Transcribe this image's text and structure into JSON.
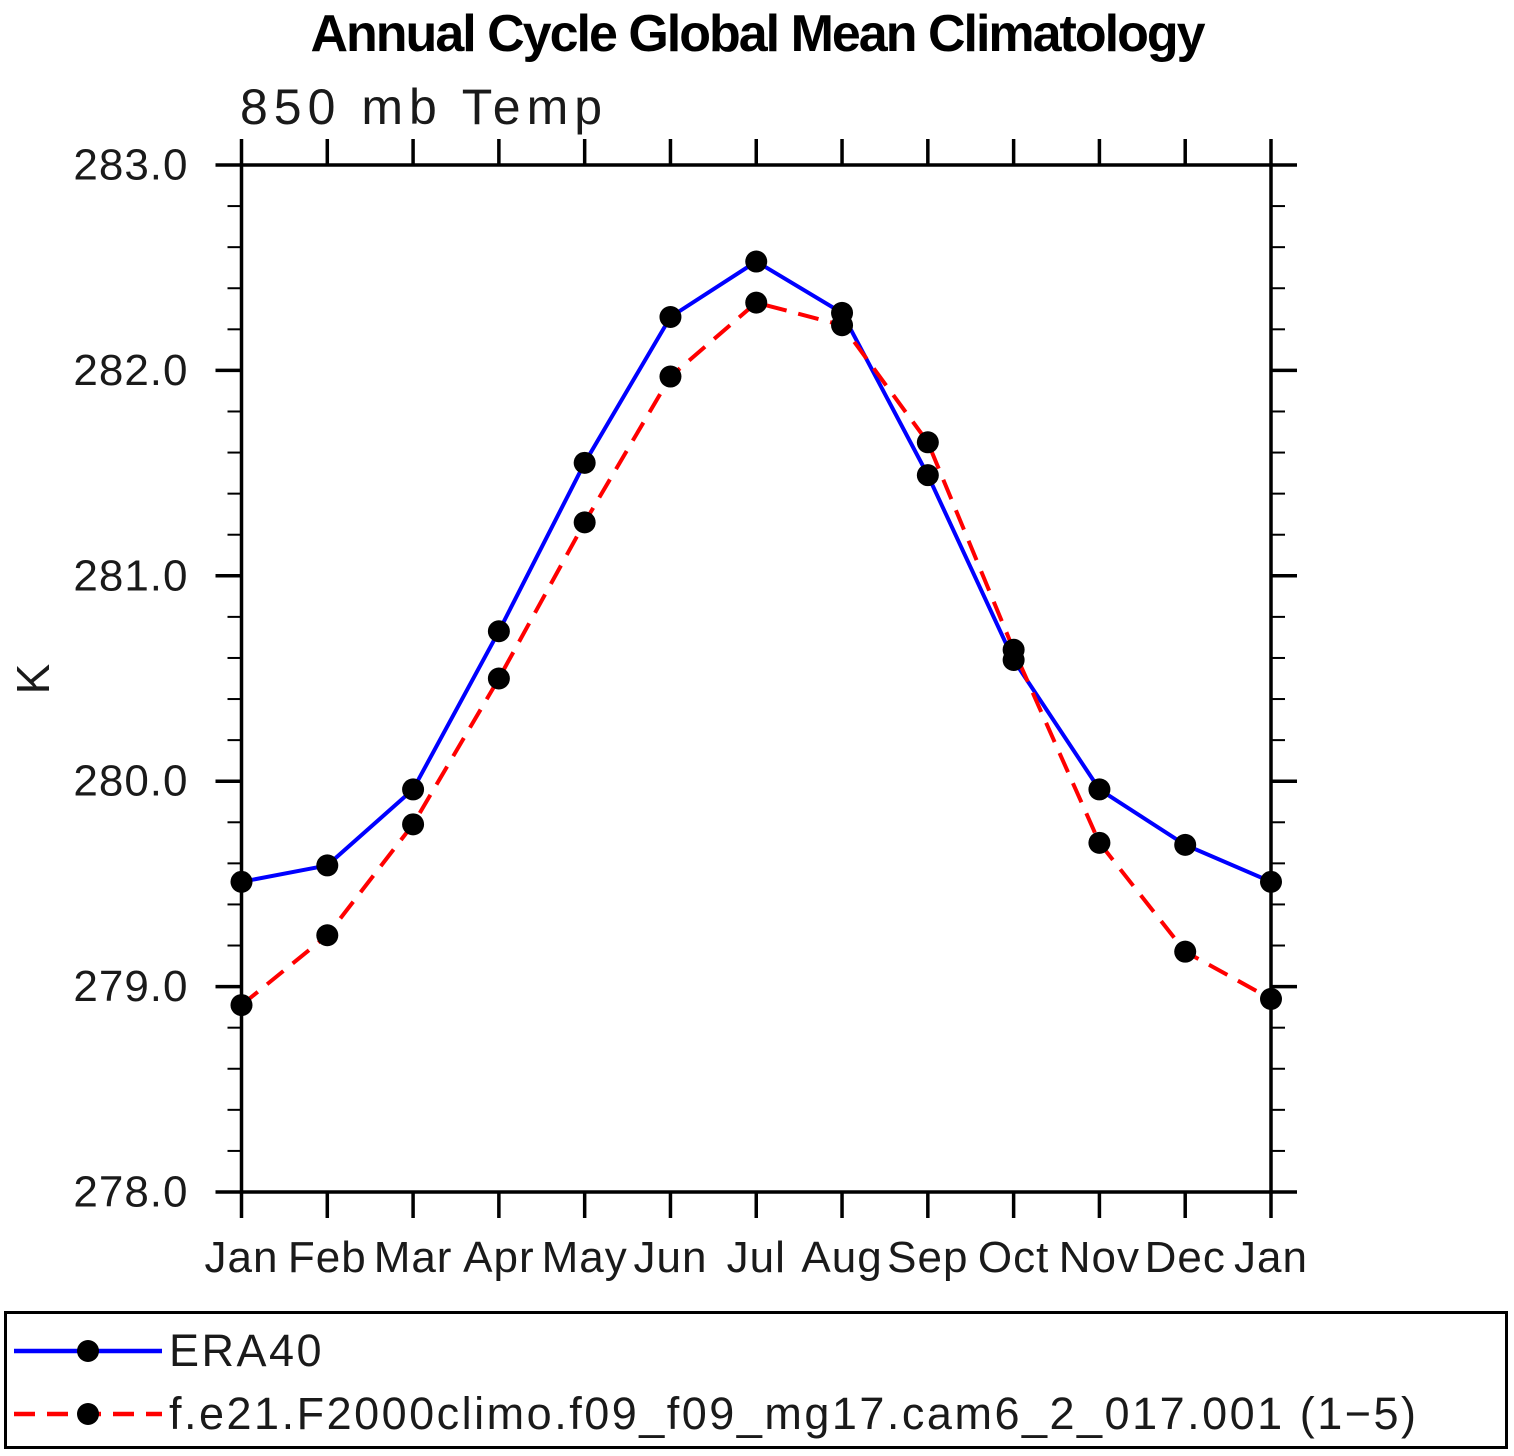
{
  "title": "Annual Cycle Global Mean Climatology",
  "subtitle": "850 mb Temp",
  "ylabel": "K",
  "chart_data": {
    "type": "line",
    "title": "Annual Cycle Global Mean Climatology",
    "subtitle": "850 mb Temp",
    "xlabel": "",
    "ylabel": "K",
    "categories": [
      "Jan",
      "Feb",
      "Mar",
      "Apr",
      "May",
      "Jun",
      "Jul",
      "Aug",
      "Sep",
      "Oct",
      "Nov",
      "Dec",
      "Jan"
    ],
    "series": [
      {
        "name": "ERA40",
        "color": "#0000ff",
        "line_style": "solid",
        "marker": "filled-circle",
        "marker_color": "#000000",
        "values": [
          279.51,
          279.59,
          279.96,
          280.73,
          281.55,
          282.26,
          282.53,
          282.28,
          281.49,
          280.59,
          279.96,
          279.69,
          279.51
        ]
      },
      {
        "name": "f.e21.F2000climo.f09_f09_mg17.cam6_2_017.001 (1−5)",
        "color": "#ff0000",
        "line_style": "dashed",
        "marker": "filled-circle",
        "marker_color": "#000000",
        "values": [
          278.91,
          279.25,
          279.79,
          280.5,
          281.26,
          281.97,
          282.33,
          282.22,
          281.65,
          280.64,
          279.7,
          279.17,
          278.94
        ]
      }
    ],
    "ylim": [
      278.0,
      283.0
    ],
    "ytick_interval": 1.0,
    "ytick_minor_interval": 0.2,
    "ytick_labels": [
      "278.0",
      "279.0",
      "280.0",
      "281.0",
      "282.0",
      "283.0"
    ],
    "grid": false,
    "legend_position": "bottom-outside-box"
  }
}
